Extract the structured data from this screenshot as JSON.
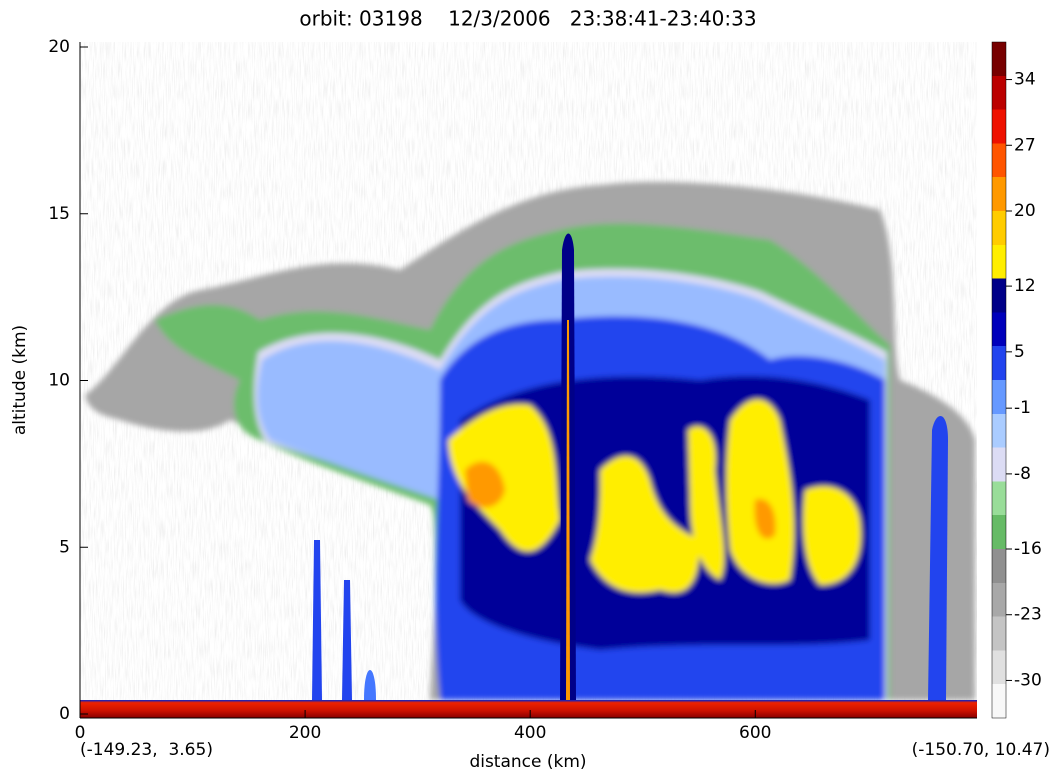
{
  "chart_data": {
    "type": "heatmap",
    "title": "orbit: 03198    12/3/2006   23:38:41-23:40:33",
    "x_label": "distance (km)",
    "y_label": "altitude (km)",
    "xlim": [
      0,
      797
    ],
    "xticks": [
      0,
      200,
      400,
      600
    ],
    "ylim": [
      0,
      20
    ],
    "yticks": [
      0,
      5,
      10,
      15,
      20
    ],
    "corner_labels": [
      "(-149.23,  3.65)",
      "(-150.70, 10.47)"
    ],
    "colorbar": {
      "clim": [
        -34,
        38
      ],
      "ticks": [
        34,
        27,
        20,
        12,
        5,
        -1,
        -8,
        -16,
        -23,
        -30
      ],
      "colors": [
        "#f8f8f8",
        "#e0e0e0",
        "#c4c4c4",
        "#a8a8a8",
        "#909090",
        "#66bb66",
        "#99dd99",
        "#dcdcf4",
        "#aaccff",
        "#6699ff",
        "#2244ee",
        "#0000bb",
        "#000088",
        "#ffee00",
        "#ffcc00",
        "#ff9900",
        "#ff5500",
        "#ee1100",
        "#bb0000",
        "#770000"
      ]
    }
  }
}
